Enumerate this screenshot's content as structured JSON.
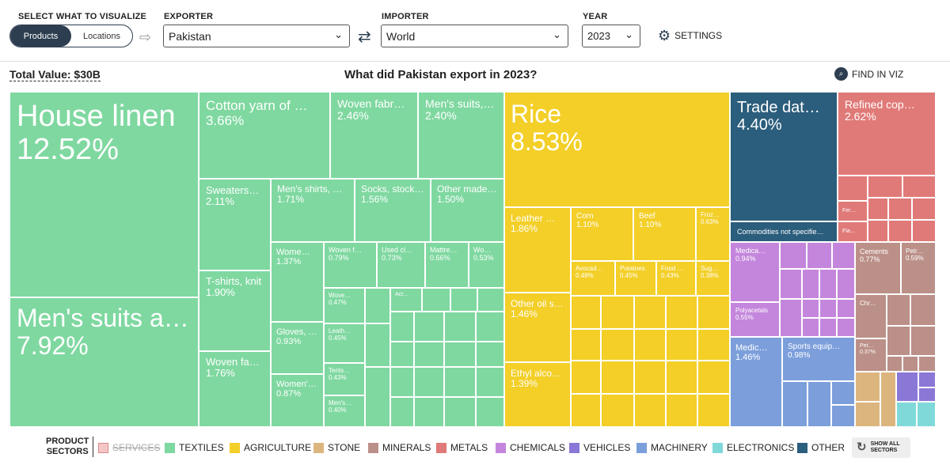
{
  "header": {
    "viz_label": "SELECT WHAT TO VISUALIZE",
    "toggle_products": "Products",
    "toggle_locations": "Locations",
    "exporter_label": "EXPORTER",
    "exporter_value": "Pakistan",
    "importer_label": "IMPORTER",
    "importer_value": "World",
    "year_label": "YEAR",
    "year_value": "2023",
    "settings": "SETTINGS"
  },
  "summary": {
    "total": "Total Value: $30B",
    "title": "What did Pakistan export in 2023?",
    "find": "FIND IN VIZ"
  },
  "treemap": {
    "house_linen": {
      "name": "House linen",
      "pct": "12.52%"
    },
    "mens_suits": {
      "name": "Men's suits a…",
      "pct": "7.92%"
    },
    "cotton_yarn": {
      "name": "Cotton yarn of …",
      "pct": "3.66%"
    },
    "woven_fab1": {
      "name": "Woven fabr…",
      "pct": "2.46%"
    },
    "mens_suits2": {
      "name": "Men's suits,…",
      "pct": "2.40%"
    },
    "sweaters": {
      "name": "Sweaters…",
      "pct": "2.11%"
    },
    "mens_shirts": {
      "name": "Men's shirts, …",
      "pct": "1.71%"
    },
    "socks": {
      "name": "Socks, stock…",
      "pct": "1.56%"
    },
    "other_made": {
      "name": "Other made…",
      "pct": "1.50%"
    },
    "tshirts": {
      "name": "T-shirts, knit",
      "pct": "1.90%"
    },
    "women1": {
      "name": "Wome…",
      "pct": "1.37%"
    },
    "woven_f2": {
      "name": "Woven f…",
      "pct": "0.79%"
    },
    "used_cl": {
      "name": "Used cl…",
      "pct": "0.73%"
    },
    "mattre": {
      "name": "Mattre…",
      "pct": "0.66%"
    },
    "wo": {
      "name": "Wo…",
      "pct": "0.53%"
    },
    "wove3": {
      "name": "Wove…",
      "pct": "0.47%"
    },
    "act": {
      "name": "Act…"
    },
    "gloves": {
      "name": "Gloves, …",
      "pct": "0.93%"
    },
    "leath": {
      "name": "Leath…",
      "pct": "0.45%"
    },
    "woven_fab4": {
      "name": "Woven fab…",
      "pct": "1.76%"
    },
    "womens2": {
      "name": "Women'…",
      "pct": "0.87%"
    },
    "tents": {
      "name": "Tents…",
      "pct": "0.43%"
    },
    "mens_s": {
      "name": "Men's…",
      "pct": "0.40%"
    },
    "rice": {
      "name": "Rice",
      "pct": "8.53%"
    },
    "leather": {
      "name": "Leather …",
      "pct": "1.86%"
    },
    "corn": {
      "name": "Corn",
      "pct": "1.10%"
    },
    "beef": {
      "name": "Beef",
      "pct": "1.10%"
    },
    "froz": {
      "name": "Froz…",
      "pct": "0.63%"
    },
    "avocad": {
      "name": "Avocad…",
      "pct": "0.48%"
    },
    "potatoes": {
      "name": "Potatoes",
      "pct": "0.45%"
    },
    "food": {
      "name": "Food …",
      "pct": "0.43%"
    },
    "sug": {
      "name": "Sug…",
      "pct": "0.38%"
    },
    "other_oil": {
      "name": "Other oil s…",
      "pct": "1.46%"
    },
    "ethyl": {
      "name": "Ethyl alco…",
      "pct": "1.39%"
    },
    "trade_data": {
      "name": "Trade dat…",
      "pct": "4.40%"
    },
    "commodities": {
      "name": "Commodities not specifie…"
    },
    "refined_cop": {
      "name": "Refined cop…",
      "pct": "2.62%"
    },
    "fer": {
      "name": "Fer…"
    },
    "fla": {
      "name": "Fla…"
    },
    "medica": {
      "name": "Medica…",
      "pct": "0.94%"
    },
    "polyacetals": {
      "name": "Polyacetals",
      "pct": "0.55%"
    },
    "cements": {
      "name": "Cements",
      "pct": "0.77%"
    },
    "petr": {
      "name": "Petr…",
      "pct": "0.59%"
    },
    "chr": {
      "name": "Chr…"
    },
    "pet": {
      "name": "Pet…",
      "pct": "0.37%"
    },
    "medic": {
      "name": "Medic…",
      "pct": "1.46%"
    },
    "sports": {
      "name": "Sports equip…",
      "pct": "0.98%"
    }
  },
  "legend": {
    "title_line1": "PRODUCT",
    "title_line2": "SECTORS",
    "services": "SERVICES",
    "textiles": "TEXTILES",
    "agriculture": "AGRICULTURE",
    "stone": "STONE",
    "minerals": "MINERALS",
    "metals": "METALS",
    "chemicals": "CHEMICALS",
    "vehicles": "VEHICLES",
    "machinery": "MACHINERY",
    "electronics": "ELECTRONICS",
    "other": "OTHER",
    "show_all_1": "SHOW ALL",
    "show_all_2": "SECTORS"
  },
  "colors": {
    "textiles": "#7fd8a0",
    "agriculture": "#f3cf28",
    "stone": "#dcb57e",
    "minerals": "#bb9088",
    "metals": "#e07a78",
    "chemicals": "#c486dc",
    "vehicles": "#8b77d6",
    "machinery": "#7c9fdb",
    "electronics": "#7fd9d9",
    "other": "#2b5d7c",
    "accent": "#2d3e50"
  }
}
